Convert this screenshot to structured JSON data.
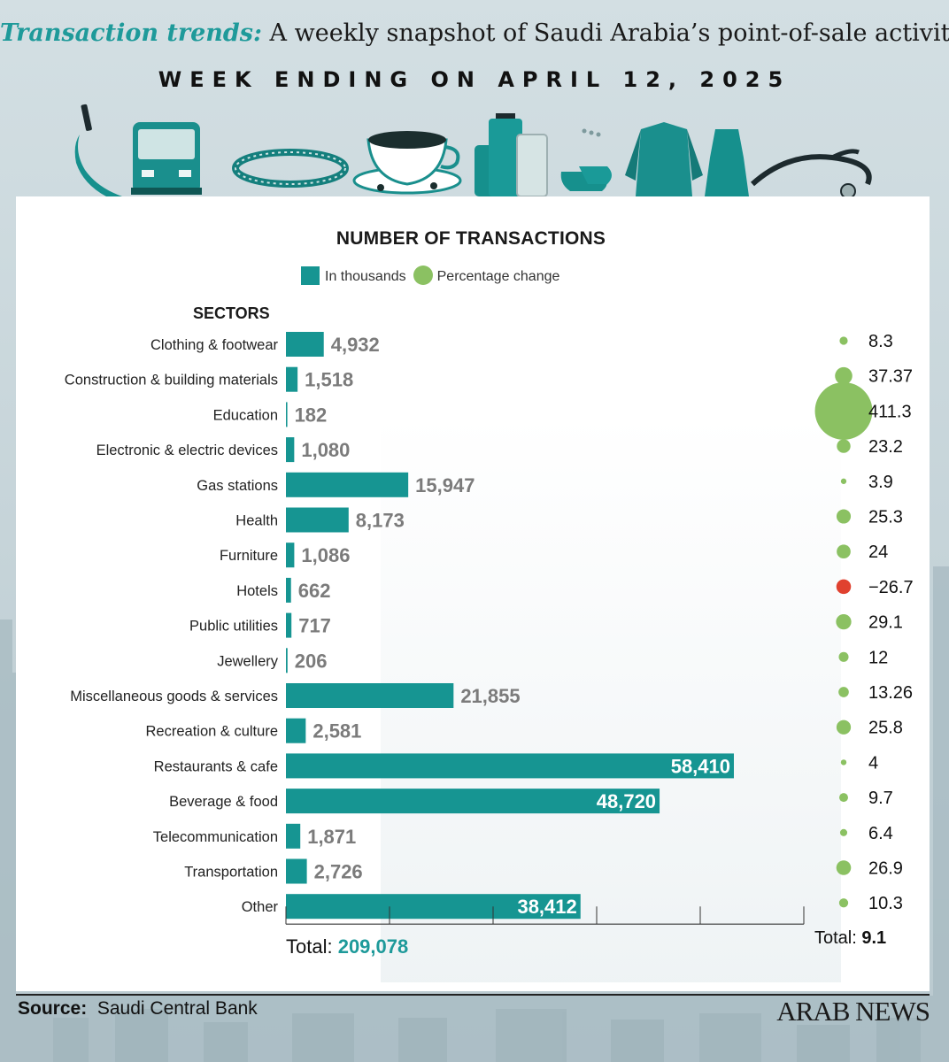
{
  "header": {
    "title_lead": "Transaction trends:",
    "title_rest": " A weekly snapshot of Saudi Arabia’s point-of-sale activity",
    "subtitle": "WEEK ENDING ON APRIL 12, 2025"
  },
  "colors": {
    "bar": "#169592",
    "positive_dot": "#8bc162",
    "negative_dot": "#e0412f",
    "value_text": "#7b7b7b",
    "value_text_inside": "#ffffff",
    "total_accent": "#1e9a9a"
  },
  "icons": [
    "smartphone-hand-icon",
    "bus-icon",
    "bracelet-icon",
    "coffee-cup-icon",
    "luggage-icon",
    "shoes-icon",
    "jacket-icon",
    "dress-icon",
    "stethoscope-icon"
  ],
  "legend": {
    "bars_label": "In thousands",
    "dots_label": "Percentage change"
  },
  "chart_data": {
    "type": "bar",
    "orientation": "horizontal",
    "title": "NUMBER OF TRANSACTIONS",
    "category_header": "SECTORS",
    "categories": [
      "Clothing & footwear",
      "Construction & building materials",
      "Education",
      "Electronic & electric devices",
      "Gas stations",
      "Health",
      "Furniture",
      "Hotels",
      "Public utilities",
      "Jewellery",
      "Miscellaneous goods & services",
      "Recreation & culture",
      "Restaurants & cafe",
      "Beverage & food",
      "Telecommunication",
      "Transportation",
      "Other"
    ],
    "series": [
      {
        "name": "In thousands",
        "values": [
          4932,
          1518,
          182,
          1080,
          15947,
          8173,
          1086,
          662,
          717,
          206,
          21855,
          2581,
          58410,
          48720,
          1871,
          2726,
          38412
        ],
        "labels": [
          "4,932",
          "1,518",
          "182",
          "1,080",
          "15,947",
          "8,173",
          "1,086",
          "662",
          "717",
          "206",
          "21,855",
          "2,581",
          "58,410",
          "48,720",
          "1,871",
          "2,726",
          "38,412"
        ]
      },
      {
        "name": "Percentage change",
        "values": [
          8.3,
          37.37,
          411.3,
          23.2,
          3.9,
          25.3,
          24,
          -26.7,
          29.1,
          12,
          13.26,
          25.8,
          4,
          9.7,
          6.4,
          26.9,
          10.3
        ],
        "labels": [
          "8.3",
          "37.37",
          "411.3",
          "23.2",
          "3.9",
          "25.3",
          "24",
          "−26.7",
          "29.1",
          "12",
          "13.26",
          "25.8",
          "4",
          "9.7",
          "6.4",
          "26.9",
          "10.3"
        ]
      }
    ],
    "xlim": [
      0,
      67500
    ],
    "totals": {
      "transactions_label": "Total:",
      "transactions_value": "209,078",
      "change_label": "Total:",
      "change_value": "9.1"
    },
    "grid": false
  },
  "footer": {
    "source_label": "Source:",
    "source_text": "Saudi Central Bank",
    "brand": "ARAB NEWS"
  }
}
